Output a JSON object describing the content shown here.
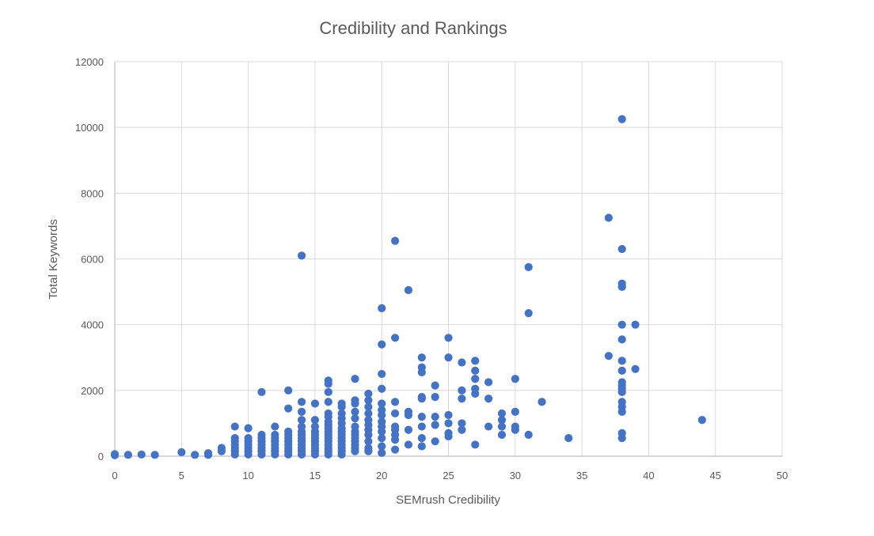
{
  "chart_data": {
    "type": "scatter",
    "title": "Credibility and Rankings",
    "xlabel": "SEMrush Credibility",
    "ylabel": "Total Keywords",
    "xlim": [
      0,
      50
    ],
    "ylim": [
      0,
      12000
    ],
    "x_ticks": [
      "0",
      "5",
      "10",
      "15",
      "20",
      "25",
      "30",
      "35",
      "40",
      "45",
      "50"
    ],
    "y_ticks": [
      "0",
      "2000",
      "4000",
      "6000",
      "8000",
      "10000",
      "12000"
    ],
    "grid": true,
    "legend": "none",
    "colors": {
      "marker": "#4472c4",
      "grid": "#d9d9d9",
      "text": "#595959"
    },
    "series": [
      {
        "points": [
          [
            0,
            30
          ],
          [
            0,
            60
          ],
          [
            1,
            40
          ],
          [
            2,
            50
          ],
          [
            3,
            40
          ],
          [
            5,
            120
          ],
          [
            6,
            40
          ],
          [
            7,
            40
          ],
          [
            7,
            90
          ],
          [
            8,
            150
          ],
          [
            8,
            250
          ],
          [
            9,
            50
          ],
          [
            9,
            150
          ],
          [
            9,
            250
          ],
          [
            9,
            350
          ],
          [
            9,
            450
          ],
          [
            9,
            550
          ],
          [
            9,
            900
          ],
          [
            10,
            50
          ],
          [
            10,
            150
          ],
          [
            10,
            250
          ],
          [
            10,
            350
          ],
          [
            10,
            450
          ],
          [
            10,
            550
          ],
          [
            10,
            850
          ],
          [
            11,
            50
          ],
          [
            11,
            150
          ],
          [
            11,
            250
          ],
          [
            11,
            350
          ],
          [
            11,
            450
          ],
          [
            11,
            550
          ],
          [
            11,
            650
          ],
          [
            11,
            1950
          ],
          [
            12,
            50
          ],
          [
            12,
            150
          ],
          [
            12,
            250
          ],
          [
            12,
            350
          ],
          [
            12,
            450
          ],
          [
            12,
            550
          ],
          [
            12,
            650
          ],
          [
            12,
            900
          ],
          [
            13,
            50
          ],
          [
            13,
            150
          ],
          [
            13,
            250
          ],
          [
            13,
            350
          ],
          [
            13,
            450
          ],
          [
            13,
            550
          ],
          [
            13,
            650
          ],
          [
            13,
            750
          ],
          [
            13,
            1450
          ],
          [
            13,
            2000
          ],
          [
            14,
            50
          ],
          [
            14,
            150
          ],
          [
            14,
            250
          ],
          [
            14,
            350
          ],
          [
            14,
            450
          ],
          [
            14,
            550
          ],
          [
            14,
            650
          ],
          [
            14,
            750
          ],
          [
            14,
            900
          ],
          [
            14,
            1100
          ],
          [
            14,
            1350
          ],
          [
            14,
            1650
          ],
          [
            14,
            6100
          ],
          [
            15,
            50
          ],
          [
            15,
            150
          ],
          [
            15,
            250
          ],
          [
            15,
            350
          ],
          [
            15,
            450
          ],
          [
            15,
            550
          ],
          [
            15,
            650
          ],
          [
            15,
            750
          ],
          [
            15,
            900
          ],
          [
            15,
            1100
          ],
          [
            15,
            1600
          ],
          [
            16,
            50
          ],
          [
            16,
            150
          ],
          [
            16,
            250
          ],
          [
            16,
            350
          ],
          [
            16,
            450
          ],
          [
            16,
            550
          ],
          [
            16,
            650
          ],
          [
            16,
            750
          ],
          [
            16,
            850
          ],
          [
            16,
            950
          ],
          [
            16,
            1050
          ],
          [
            16,
            1200
          ],
          [
            16,
            1300
          ],
          [
            16,
            1650
          ],
          [
            16,
            1950
          ],
          [
            16,
            2200
          ],
          [
            16,
            2300
          ],
          [
            17,
            50
          ],
          [
            17,
            150
          ],
          [
            17,
            250
          ],
          [
            17,
            350
          ],
          [
            17,
            450
          ],
          [
            17,
            550
          ],
          [
            17,
            650
          ],
          [
            17,
            750
          ],
          [
            17,
            850
          ],
          [
            17,
            1000
          ],
          [
            17,
            1150
          ],
          [
            17,
            1300
          ],
          [
            17,
            1500
          ],
          [
            17,
            1600
          ],
          [
            18,
            150
          ],
          [
            18,
            250
          ],
          [
            18,
            350
          ],
          [
            18,
            450
          ],
          [
            18,
            550
          ],
          [
            18,
            650
          ],
          [
            18,
            750
          ],
          [
            18,
            900
          ],
          [
            18,
            1150
          ],
          [
            18,
            1350
          ],
          [
            18,
            1600
          ],
          [
            18,
            1700
          ],
          [
            18,
            2350
          ],
          [
            19,
            150
          ],
          [
            19,
            250
          ],
          [
            19,
            450
          ],
          [
            19,
            650
          ],
          [
            19,
            800
          ],
          [
            19,
            950
          ],
          [
            19,
            1100
          ],
          [
            19,
            1300
          ],
          [
            19,
            1500
          ],
          [
            19,
            1700
          ],
          [
            19,
            1900
          ],
          [
            20,
            100
          ],
          [
            20,
            300
          ],
          [
            20,
            550
          ],
          [
            20,
            750
          ],
          [
            20,
            900
          ],
          [
            20,
            1050
          ],
          [
            20,
            1250
          ],
          [
            20,
            1400
          ],
          [
            20,
            1600
          ],
          [
            20,
            2050
          ],
          [
            20,
            2500
          ],
          [
            20,
            3400
          ],
          [
            20,
            4500
          ],
          [
            21,
            200
          ],
          [
            21,
            500
          ],
          [
            21,
            650
          ],
          [
            21,
            800
          ],
          [
            21,
            900
          ],
          [
            21,
            1300
          ],
          [
            21,
            1650
          ],
          [
            21,
            3600
          ],
          [
            21,
            6550
          ],
          [
            22,
            350
          ],
          [
            22,
            800
          ],
          [
            22,
            1250
          ],
          [
            22,
            1350
          ],
          [
            22,
            5050
          ],
          [
            23,
            300
          ],
          [
            23,
            550
          ],
          [
            23,
            900
          ],
          [
            23,
            1200
          ],
          [
            23,
            1750
          ],
          [
            23,
            1800
          ],
          [
            23,
            2550
          ],
          [
            23,
            2700
          ],
          [
            23,
            3000
          ],
          [
            24,
            450
          ],
          [
            24,
            950
          ],
          [
            24,
            1200
          ],
          [
            24,
            1800
          ],
          [
            24,
            2150
          ],
          [
            25,
            600
          ],
          [
            25,
            700
          ],
          [
            25,
            1000
          ],
          [
            25,
            1250
          ],
          [
            25,
            3000
          ],
          [
            25,
            3600
          ],
          [
            26,
            800
          ],
          [
            26,
            1000
          ],
          [
            26,
            1750
          ],
          [
            26,
            2000
          ],
          [
            26,
            2850
          ],
          [
            27,
            350
          ],
          [
            27,
            1900
          ],
          [
            27,
            2050
          ],
          [
            27,
            2350
          ],
          [
            27,
            2600
          ],
          [
            27,
            2900
          ],
          [
            28,
            900
          ],
          [
            28,
            1750
          ],
          [
            28,
            2250
          ],
          [
            29,
            650
          ],
          [
            29,
            900
          ],
          [
            29,
            1100
          ],
          [
            29,
            1300
          ],
          [
            30,
            800
          ],
          [
            30,
            900
          ],
          [
            30,
            1350
          ],
          [
            30,
            2350
          ],
          [
            31,
            650
          ],
          [
            31,
            4350
          ],
          [
            31,
            5750
          ],
          [
            32,
            1650
          ],
          [
            34,
            550
          ],
          [
            37,
            3050
          ],
          [
            37,
            7250
          ],
          [
            38,
            550
          ],
          [
            38,
            700
          ],
          [
            38,
            1350
          ],
          [
            38,
            1500
          ],
          [
            38,
            1650
          ],
          [
            38,
            1950
          ],
          [
            38,
            2050
          ],
          [
            38,
            2150
          ],
          [
            38,
            2250
          ],
          [
            38,
            2600
          ],
          [
            38,
            2900
          ],
          [
            38,
            3550
          ],
          [
            38,
            4000
          ],
          [
            38,
            5150
          ],
          [
            38,
            5250
          ],
          [
            38,
            6300
          ],
          [
            38,
            10250
          ],
          [
            39,
            2650
          ],
          [
            39,
            4000
          ],
          [
            44,
            1100
          ]
        ]
      }
    ]
  }
}
